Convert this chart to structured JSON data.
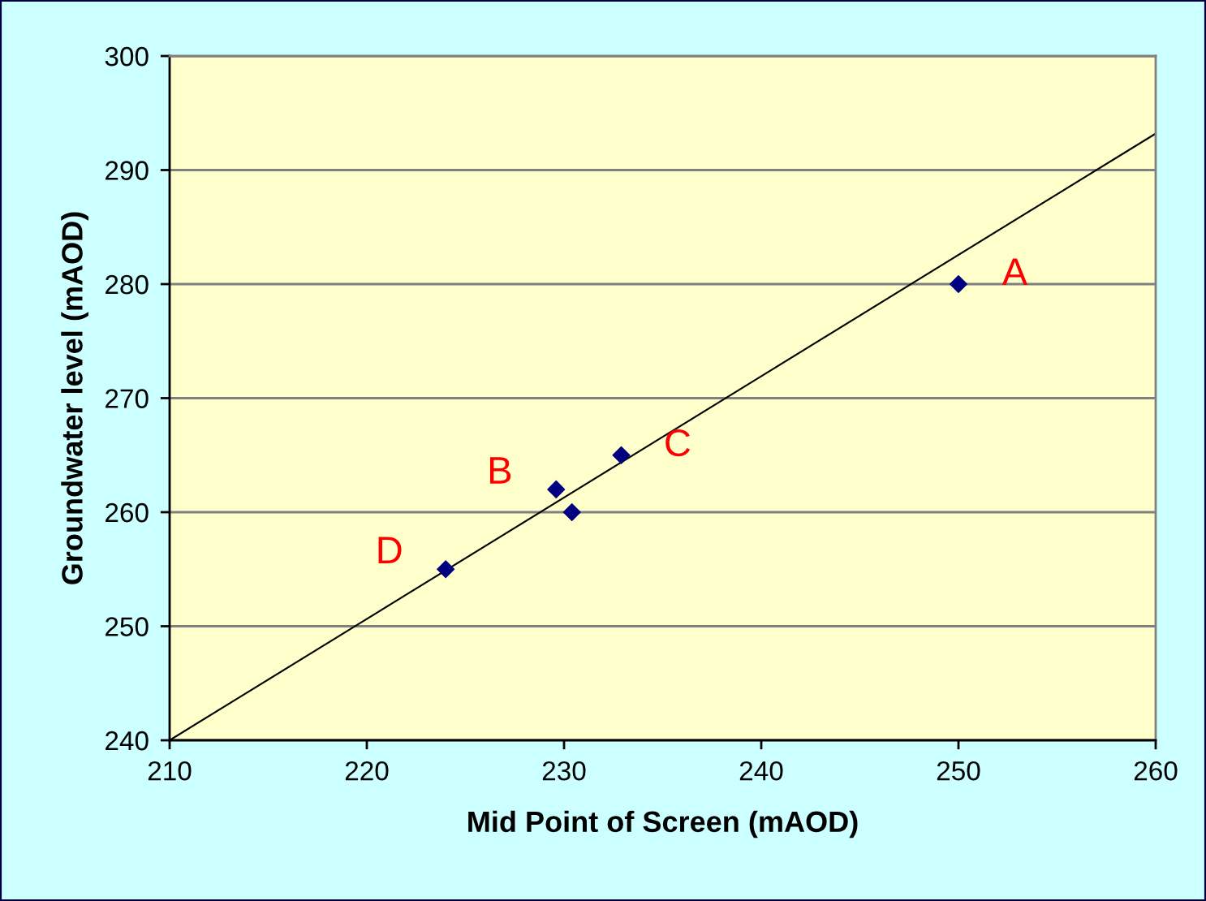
{
  "chart_data": {
    "type": "scatter",
    "xlabel": "Mid Point of Screen (mAOD)",
    "ylabel": "Groundwater level (mAOD)",
    "xlim": [
      210,
      260
    ],
    "xticks": [
      210,
      220,
      230,
      240,
      250,
      260
    ],
    "ylim": [
      240,
      300
    ],
    "yticks": [
      240,
      250,
      260,
      270,
      280,
      290,
      300
    ],
    "grid": "y",
    "marker": "diamond",
    "legend": false,
    "series": [
      {
        "color": "#000080",
        "x": [
          250.0,
          232.9,
          229.6,
          230.4,
          224.0
        ],
        "values": [
          280,
          265,
          262,
          260,
          255
        ]
      },
      {
        "type": "line",
        "color": "#000000",
        "line_style": "solid",
        "marker": "none",
        "x": [
          210,
          260
        ],
        "values": [
          240,
          293.2
        ]
      }
    ],
    "annotations": [
      {
        "text": "A",
        "x": 250.0,
        "y": 280
      },
      {
        "text": "B",
        "x": 229.6,
        "y": 262
      },
      {
        "text": "C",
        "x": 232.9,
        "y": 265
      },
      {
        "text": "D",
        "x": 224.0,
        "y": 255
      }
    ]
  }
}
